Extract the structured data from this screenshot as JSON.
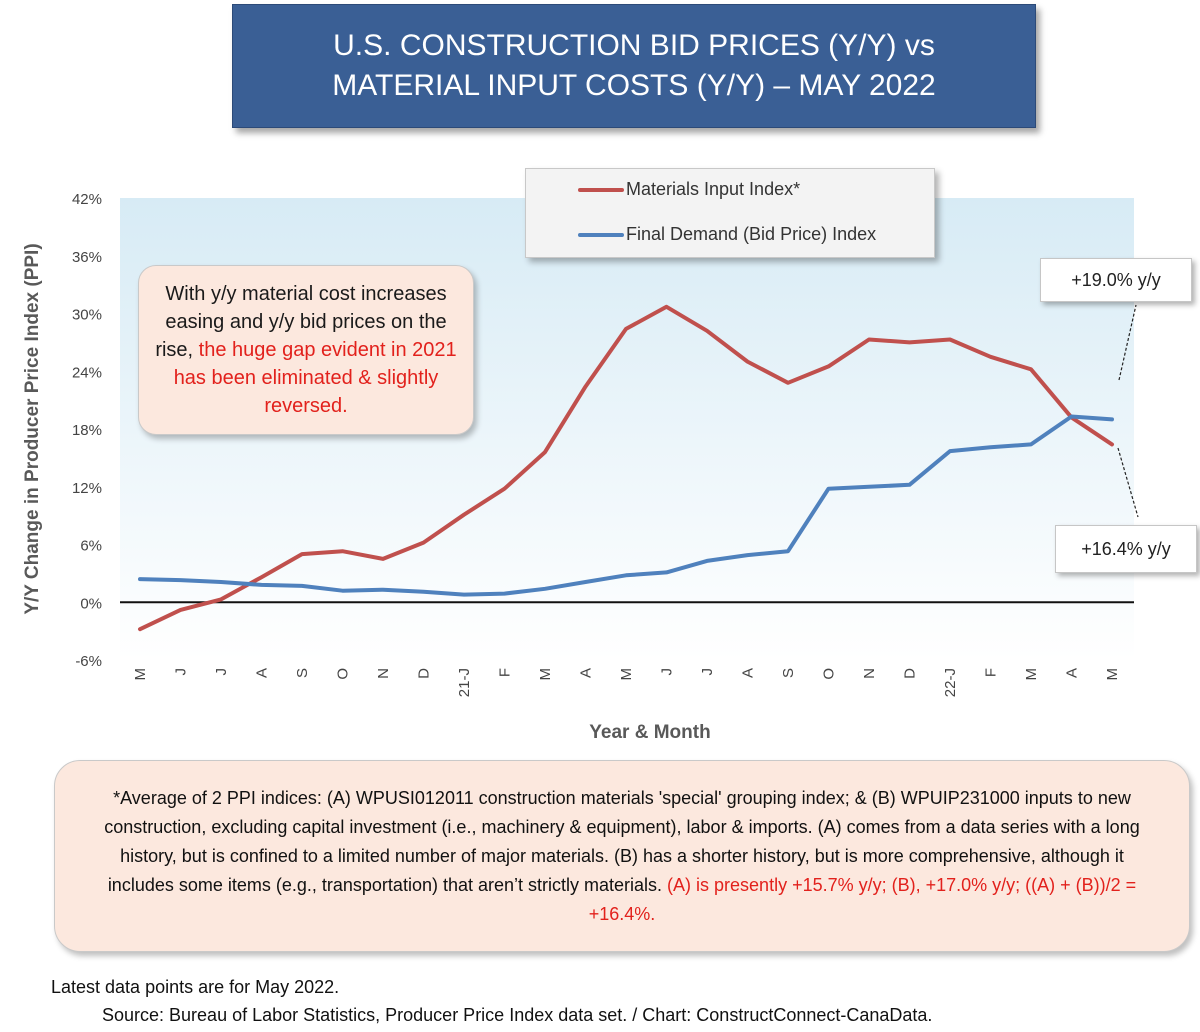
{
  "title": {
    "line1": "U.S. CONSTRUCTION BID PRICES (Y/Y) vs",
    "line2": "MATERIAL INPUT COSTS (Y/Y) –  MAY 2022"
  },
  "callout": {
    "text_plain": "With y/y material cost increases easing and y/y bid prices on the rise, ",
    "text_red": "the huge gap evident in 2021 has been eliminated & slightly reversed."
  },
  "value_tags": {
    "final_demand": "+19.0% y/y",
    "materials": "+16.4% y/y"
  },
  "footnote": {
    "text_plain": "*Average of 2 PPI indices: (A) WPUSI012011 construction materials 'special' grouping index; & (B) WPUIP231000 inputs to new construction, excluding capital investment (i.e., machinery & equipment), labor & imports. (A) comes from a data series with a long history, but is confined to a limited number of major materials. (B) has a shorter history, but is more comprehensive, although it includes some items (e.g., transportation) that aren’t strictly materials. ",
    "text_red": "(A) is presently +15.7% y/y; (B), +17.0% y/y; ((A) + (B))/2 = +16.4%."
  },
  "footer": {
    "line1": "Latest data points are for May 2022.",
    "line2": "Source: Bureau of Labor Statistics, Producer Price Index data set. / Chart: ConstructConnect-CanaData."
  },
  "colors": {
    "materials": "#c0504d",
    "final_demand": "#4f81bd",
    "title_bg": "#3a5f95",
    "highlight_text": "#e2211c"
  },
  "chart_data": {
    "type": "line",
    "xlabel": "Year & Month",
    "ylabel": "Y/Y Change in Producer Price Index (PPI)",
    "ylim": [
      -6,
      42
    ],
    "yticks": [
      -6,
      0,
      6,
      12,
      18,
      24,
      30,
      36,
      42
    ],
    "ytick_labels": [
      "-6%",
      "0%",
      "6%",
      "12%",
      "18%",
      "24%",
      "30%",
      "36%",
      "42%"
    ],
    "grid": false,
    "legend_position": "top-right",
    "categories": [
      "M",
      "J",
      "J",
      "A",
      "S",
      "O",
      "N",
      "D",
      "21-J",
      "F",
      "M",
      "A",
      "M",
      "J",
      "J",
      "A",
      "S",
      "O",
      "N",
      "D",
      "22-J",
      "F",
      "M",
      "A",
      "M"
    ],
    "series": [
      {
        "name": "Materials Input Index*",
        "color": "#c0504d",
        "values": [
          -2.8,
          -0.8,
          0.3,
          2.6,
          5.0,
          5.3,
          4.5,
          6.2,
          9.1,
          11.8,
          15.6,
          22.4,
          28.4,
          30.7,
          28.2,
          25.0,
          22.8,
          24.5,
          27.3,
          27.0,
          27.3,
          25.5,
          24.2,
          19.2,
          16.4
        ]
      },
      {
        "name": "Final Demand (Bid Price) Index",
        "color": "#4f81bd",
        "values": [
          2.4,
          2.3,
          2.1,
          1.8,
          1.7,
          1.2,
          1.3,
          1.1,
          0.8,
          0.9,
          1.4,
          2.1,
          2.8,
          3.1,
          4.3,
          4.9,
          5.3,
          11.8,
          12.0,
          12.2,
          15.7,
          16.1,
          16.4,
          19.3,
          19.0
        ]
      }
    ]
  }
}
